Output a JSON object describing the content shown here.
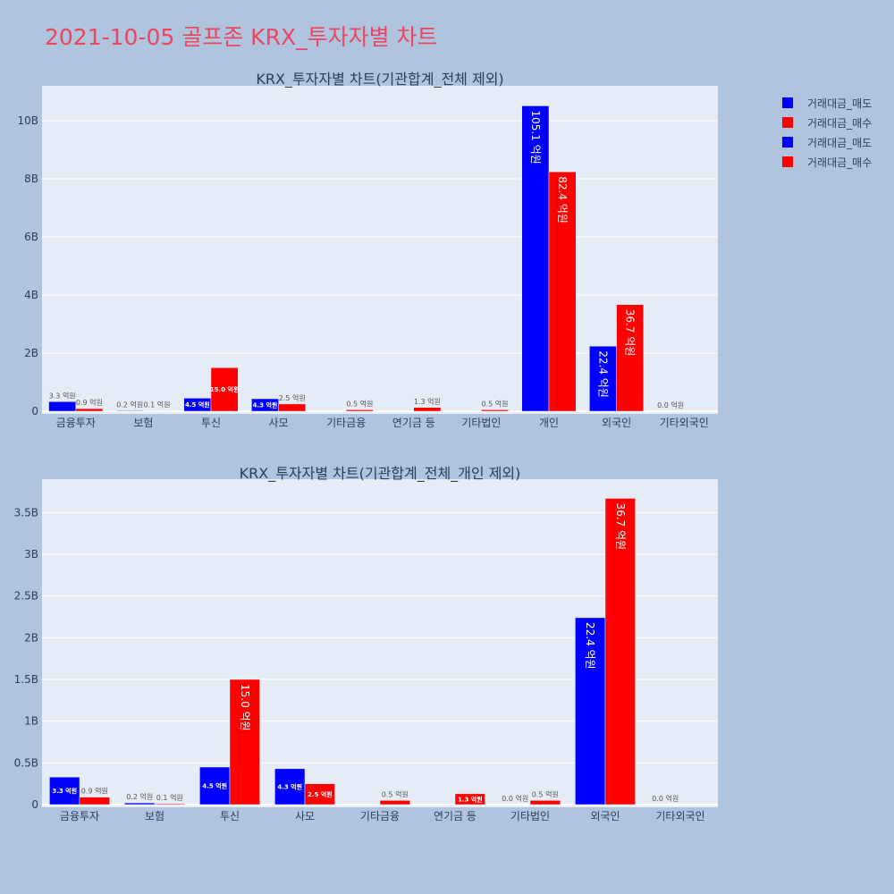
{
  "page_title": "2021-10-05 골프존 KRX_투자자별 차트",
  "colors": {
    "sell": "#0000ff",
    "buy": "#ff0000",
    "title": "#e8475f"
  },
  "legend": [
    {
      "label": "거래대금_매도",
      "color": "#0000ff"
    },
    {
      "label": "거래대금_매수",
      "color": "#ff0000"
    },
    {
      "label": "거래대금_매도",
      "color": "#0000ff"
    },
    {
      "label": "거래대금_매수",
      "color": "#ff0000"
    }
  ],
  "chart_data": [
    {
      "type": "bar",
      "title": "KRX_투자자별 차트(기관합계_전체 제외)",
      "categories": [
        "금융투자",
        "보험",
        "투신",
        "사모",
        "기타금융",
        "연기금 등",
        "기타법인",
        "개인",
        "외국인",
        "기타외국인"
      ],
      "ylim": [
        0,
        11.2
      ],
      "yticks": [
        0,
        2,
        4,
        6,
        8,
        10
      ],
      "ytick_labels": [
        "0",
        "2B",
        "4B",
        "6B",
        "8B",
        "10B"
      ],
      "grid": true,
      "series": [
        {
          "name": "거래대금_매도",
          "color": "#0000ff",
          "values": [
            0.33,
            0.02,
            0.45,
            0.43,
            null,
            null,
            null,
            10.51,
            2.24,
            0.0
          ],
          "labels": [
            "3.3 억원",
            "0.2 억원",
            "4.5 억원",
            "4.3 억원",
            "",
            "",
            "",
            "105.1 억원",
            "22.4 억원",
            "0.0 억원"
          ]
        },
        {
          "name": "거래대금_매수",
          "color": "#ff0000",
          "values": [
            0.09,
            0.01,
            1.5,
            0.25,
            0.05,
            0.13,
            0.05,
            8.24,
            3.67,
            null
          ],
          "labels": [
            "0.9 억원",
            "0.1 억원",
            "15.0 억원",
            "2.5 억원",
            "0.5 억원",
            "1.3 억원",
            "0.5 억원",
            "82.4 억원",
            "36.7 억원",
            ""
          ]
        }
      ]
    },
    {
      "type": "bar",
      "title": "KRX_투자자별 차트(기관합계_전체_개인 제외)",
      "categories": [
        "금융투자",
        "보험",
        "투신",
        "사모",
        "기타금융",
        "연기금 등",
        "기타법인",
        "외국인",
        "기타외국인"
      ],
      "ylim": [
        0,
        3.9
      ],
      "yticks": [
        0,
        0.5,
        1,
        1.5,
        2,
        2.5,
        3,
        3.5
      ],
      "ytick_labels": [
        "0",
        "0.5B",
        "1B",
        "1.5B",
        "2B",
        "2.5B",
        "3B",
        "3.5B"
      ],
      "grid": true,
      "series": [
        {
          "name": "거래대금_매도",
          "color": "#0000ff",
          "values": [
            0.33,
            0.02,
            0.45,
            0.43,
            null,
            null,
            0.0,
            2.24,
            0.0
          ],
          "labels": [
            "3.3 억원",
            "0.2 억원",
            "4.5 억원",
            "4.3 억원",
            "",
            "",
            "0.0 억원",
            "22.4 억원",
            "0.0 억원"
          ]
        },
        {
          "name": "거래대금_매수",
          "color": "#ff0000",
          "values": [
            0.09,
            0.01,
            1.5,
            0.25,
            0.05,
            0.13,
            0.05,
            3.67,
            null
          ],
          "labels": [
            "0.9 억원",
            "0.1 억원",
            "15.0 억원",
            "2.5 억원",
            "0.5 억원",
            "1.3 억원",
            "0.5 억원",
            "36.7 억원",
            ""
          ]
        }
      ]
    }
  ]
}
